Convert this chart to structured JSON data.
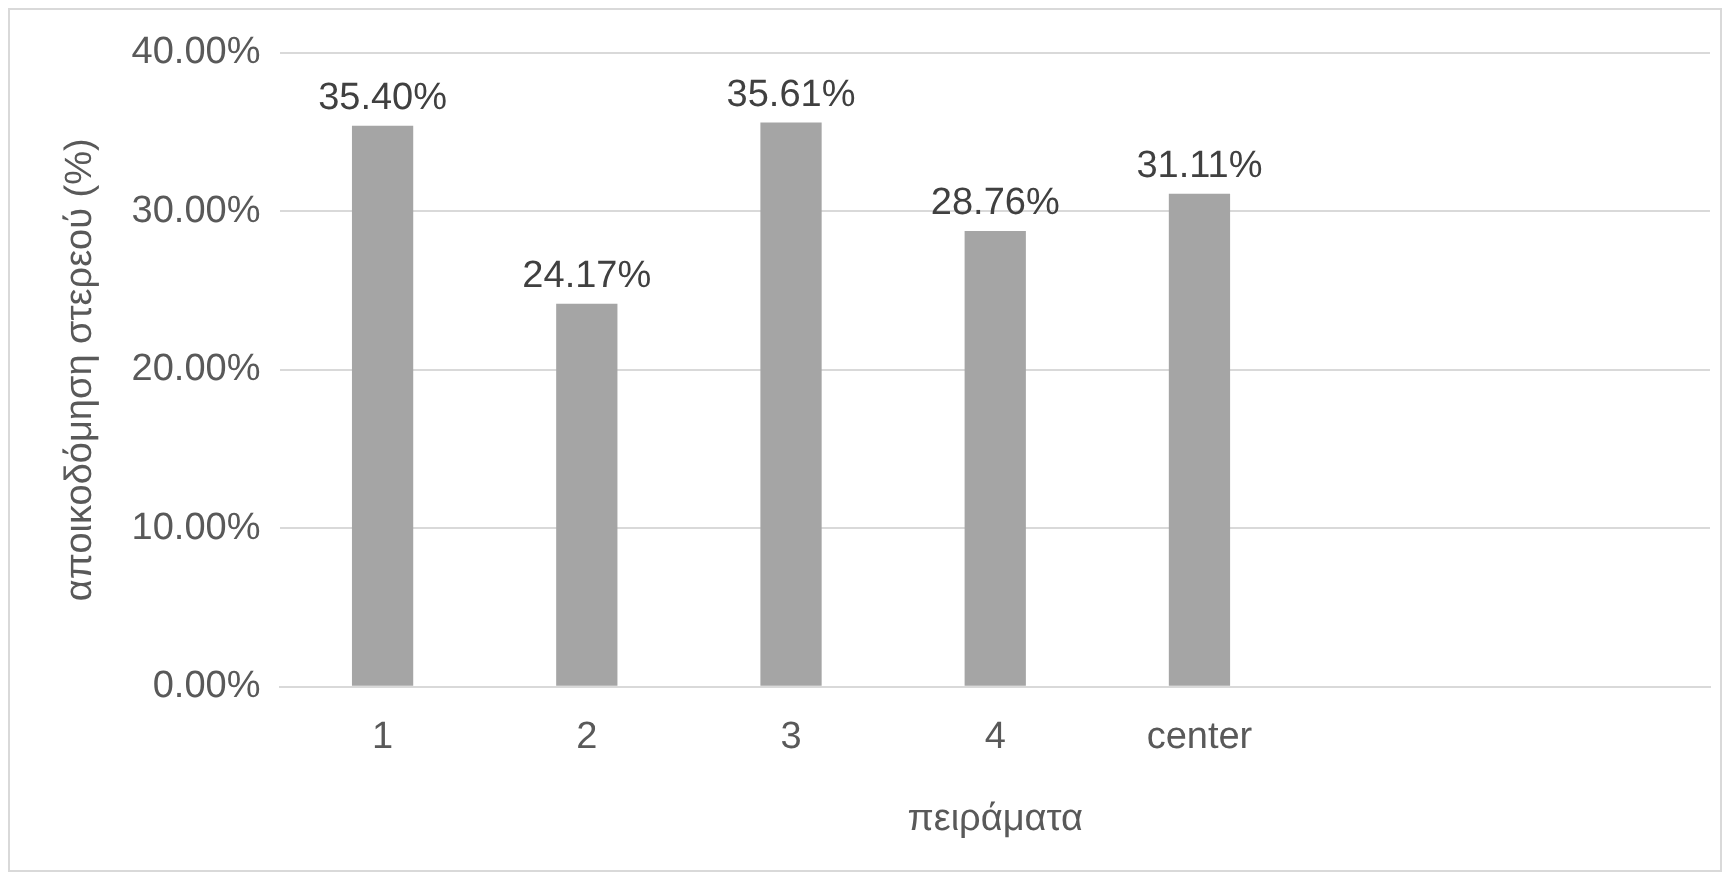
{
  "chart_data": {
    "type": "bar",
    "xlabel": "πειράματα",
    "ylabel": "αποικοδόμηση στερεού (%)",
    "categories": [
      "1",
      "2",
      "3",
      "4",
      "center",
      null,
      null
    ],
    "values": [
      35.4,
      24.17,
      35.61,
      28.76,
      31.11,
      null,
      null
    ],
    "value_labels": [
      "35.40%",
      "24.17%",
      "35.61%",
      "28.76%",
      "31.11%",
      null,
      null
    ],
    "color": "#a5a5a5",
    "ylim": [
      0,
      40
    ],
    "yticks": [
      {
        "value": 0,
        "label": "0.00%"
      },
      {
        "value": 10,
        "label": "10.00%"
      },
      {
        "value": 20,
        "label": "20.00%"
      },
      {
        "value": 30,
        "label": "30.00%"
      },
      {
        "value": 40,
        "label": "40.00%"
      }
    ],
    "grid": "y",
    "legend": false
  }
}
